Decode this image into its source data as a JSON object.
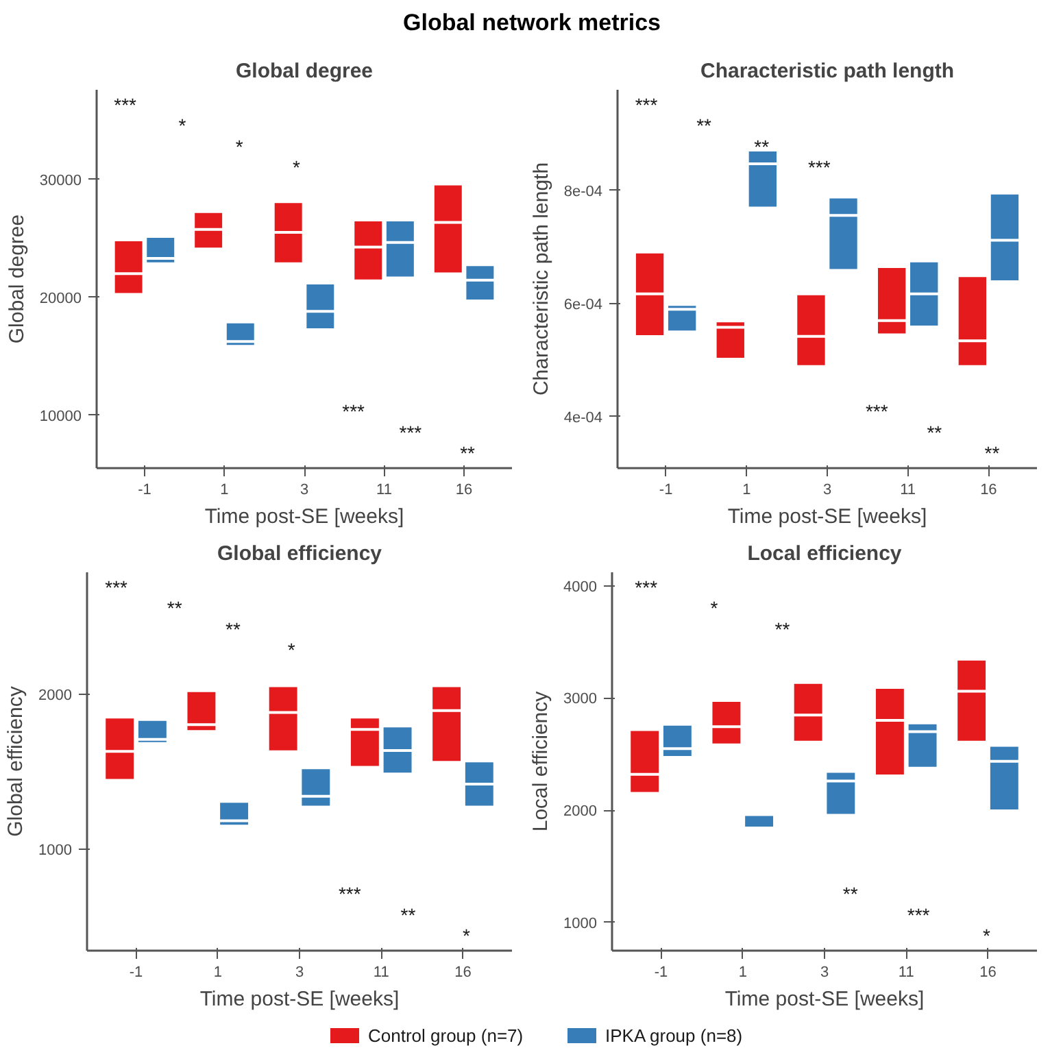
{
  "chart_data": [
    {
      "type": "box",
      "title": "Global degree",
      "xlabel": "Time post-SE [weeks]",
      "ylabel": "Global degree",
      "categories": [
        "-1",
        "1",
        "3",
        "11",
        "16"
      ],
      "series": [
        {
          "name": "Control group (n=7)",
          "color": "#e41a1c",
          "boxes": [
            {
              "low": 20300,
              "q1": 20300,
              "median": 22000,
              "q3": 24800,
              "high": 24800
            },
            {
              "low": 24150,
              "q1": 24150,
              "median": 25750,
              "q3": 27200,
              "high": 27200
            },
            {
              "low": 22900,
              "q1": 22900,
              "median": 25500,
              "q3": 28050,
              "high": 28050
            },
            {
              "low": 21450,
              "q1": 21450,
              "median": 24250,
              "q3": 26500,
              "high": 26500
            },
            {
              "low": 22050,
              "q1": 22050,
              "median": 26350,
              "q3": 29550,
              "high": 29550
            }
          ]
        },
        {
          "name": "IPKA group (n=8)",
          "color": "#377eb8",
          "boxes": [
            {
              "low": 22900,
              "q1": 22900,
              "median": 23300,
              "q3": 25100,
              "high": 25100
            },
            {
              "low": 15900,
              "q1": 15900,
              "median": 16250,
              "q3": 17850,
              "high": 17850
            },
            {
              "low": 17300,
              "q1": 17300,
              "median": 18800,
              "q3": 21150,
              "high": 21150
            },
            {
              "low": 21700,
              "q1": 21700,
              "median": 24650,
              "q3": 26500,
              "high": 26500
            },
            {
              "low": 19750,
              "q1": 19750,
              "median": 21450,
              "q3": 22700,
              "high": 22700
            }
          ]
        }
      ],
      "ylim": [
        5500,
        37600
      ],
      "yticks": [
        10000,
        20000,
        30000
      ],
      "grid": false,
      "legend": "bottom",
      "annotations": [
        "Global network metrics",
        "***",
        "*",
        "*",
        "*",
        "***",
        "***",
        "**"
      ]
    },
    {
      "type": "box",
      "title": "Characteristic path length",
      "xlabel": "Time post-SE [weeks]",
      "ylabel": "Characteristic path length",
      "categories": [
        "-1",
        "1",
        "3",
        "11",
        "16"
      ],
      "series": [
        {
          "name": "Control group (n=7)",
          "color": "#e41a1c",
          "boxes": [
            {
              "low": 0.000543,
              "q1": 0.000543,
              "median": 0.000617,
              "q3": 0.00069,
              "high": 0.00069
            },
            {
              "low": 0.000503,
              "q1": 0.000503,
              "median": 0.000558,
              "q3": 0.000568,
              "high": 0.000568
            },
            {
              "low": 0.00049,
              "q1": 0.00049,
              "median": 0.000542,
              "q3": 0.000616,
              "high": 0.000616
            },
            {
              "low": 0.000546,
              "q1": 0.000546,
              "median": 0.00057,
              "q3": 0.000664,
              "high": 0.000664
            },
            {
              "low": 0.00049,
              "q1": 0.00049,
              "median": 0.000534,
              "q3": 0.000648,
              "high": 0.000648
            }
          ]
        },
        {
          "name": "IPKA group (n=8)",
          "color": "#377eb8",
          "boxes": [
            {
              "low": 0.000551,
              "q1": 0.000551,
              "median": 0.00059,
              "q3": 0.000597,
              "high": 0.000597
            },
            {
              "low": 0.00077,
              "q1": 0.00077,
              "median": 0.000847,
              "q3": 0.00087,
              "high": 0.00087
            },
            {
              "low": 0.00066,
              "q1": 0.00066,
              "median": 0.000756,
              "q3": 0.000787,
              "high": 0.000787
            },
            {
              "low": 0.00056,
              "q1": 0.00056,
              "median": 0.000617,
              "q3": 0.000674,
              "high": 0.000674
            },
            {
              "low": 0.00064,
              "q1": 0.00064,
              "median": 0.000712,
              "q3": 0.000794,
              "high": 0.000794
            }
          ]
        }
      ],
      "ylim": [
        0.000309,
        0.000978
      ],
      "yticks": [
        {
          "value": 0.0004,
          "label": "4e-04"
        },
        {
          "value": 0.0006,
          "label": "6e-04"
        },
        {
          "value": 0.0008,
          "label": "8e-04"
        }
      ],
      "grid": false,
      "legend": "bottom",
      "annotations": [
        "***",
        "**",
        "**",
        "***",
        "***",
        "**",
        "**"
      ]
    },
    {
      "type": "box",
      "title": "Global efficiency",
      "xlabel": "Time post-SE [weeks]",
      "ylabel": "Global efficiency",
      "categories": [
        "-1",
        "1",
        "3",
        "11",
        "16"
      ],
      "series": [
        {
          "name": "Control group (n=7)",
          "color": "#e41a1c",
          "boxes": [
            {
              "low": 1448,
              "q1": 1448,
              "median": 1630,
              "q3": 1847,
              "high": 1847
            },
            {
              "low": 1763,
              "q1": 1763,
              "median": 1803,
              "q3": 2017,
              "high": 2017
            },
            {
              "low": 1633,
              "q1": 1633,
              "median": 1881,
              "q3": 2049,
              "high": 2049
            },
            {
              "low": 1532,
              "q1": 1532,
              "median": 1772,
              "q3": 1847,
              "high": 1847
            },
            {
              "low": 1564,
              "q1": 1564,
              "median": 1893,
              "q3": 2049,
              "high": 2049
            }
          ]
        },
        {
          "name": "IPKA group (n=8)",
          "color": "#377eb8",
          "boxes": [
            {
              "low": 1685,
              "q1": 1685,
              "median": 1708,
              "q3": 1832,
              "high": 1832
            },
            {
              "low": 1153,
              "q1": 1153,
              "median": 1182,
              "q3": 1303,
              "high": 1303
            },
            {
              "low": 1275,
              "q1": 1275,
              "median": 1341,
              "q3": 1520,
              "high": 1520
            },
            {
              "low": 1489,
              "q1": 1489,
              "median": 1636,
              "q3": 1789,
              "high": 1789
            },
            {
              "low": 1275,
              "q1": 1275,
              "median": 1419,
              "q3": 1564,
              "high": 1564
            }
          ]
        }
      ],
      "ylim": [
        344,
        2786
      ],
      "yticks": [
        1000,
        2000
      ],
      "grid": false,
      "legend": "bottom",
      "annotations": [
        "***",
        "**",
        "**",
        "*",
        "***",
        "**",
        "*"
      ]
    },
    {
      "type": "box",
      "title": "Local efficiency",
      "xlabel": "Time post-SE [weeks]",
      "ylabel": "Local efficiency",
      "categories": [
        "-1",
        "1",
        "3",
        "11",
        "16"
      ],
      "series": [
        {
          "name": "Control group (n=7)",
          "color": "#e41a1c",
          "boxes": [
            {
              "low": 2156,
              "q1": 2156,
              "median": 2320,
              "q3": 2712,
              "high": 2712
            },
            {
              "low": 2588,
              "q1": 2588,
              "median": 2744,
              "q3": 2972,
              "high": 2972
            },
            {
              "low": 2612,
              "q1": 2612,
              "median": 2848,
              "q3": 3132,
              "high": 3132
            },
            {
              "low": 2312,
              "q1": 2312,
              "median": 2800,
              "q3": 3088,
              "high": 3088
            },
            {
              "low": 2612,
              "q1": 2612,
              "median": 3060,
              "q3": 3340,
              "high": 3340
            }
          ]
        },
        {
          "name": "IPKA group (n=8)",
          "color": "#377eb8",
          "boxes": [
            {
              "low": 2476,
              "q1": 2476,
              "median": 2548,
              "q3": 2760,
              "high": 2760
            },
            {
              "low": 1848,
              "q1": 1848,
              "median": 1960,
              "q3": 1972,
              "high": 1972
            },
            {
              "low": 1960,
              "q1": 1960,
              "median": 2260,
              "q3": 2340,
              "high": 2340
            },
            {
              "low": 2380,
              "q1": 2380,
              "median": 2700,
              "q3": 2772,
              "high": 2772
            },
            {
              "low": 2000,
              "q1": 2000,
              "median": 2436,
              "q3": 2572,
              "high": 2572
            }
          ]
        }
      ],
      "ylim": [
        748,
        4120
      ],
      "yticks": [
        1000,
        2000,
        3000,
        4000
      ],
      "grid": false,
      "legend": "bottom",
      "annotations": [
        "***",
        "*",
        "**",
        "**",
        "***",
        "*"
      ]
    }
  ]
}
